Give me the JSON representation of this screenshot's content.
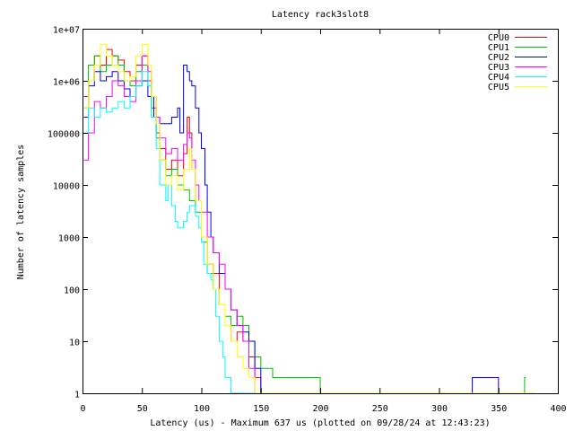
{
  "chart_data": {
    "type": "line",
    "title": "Latency rack3slot8",
    "xlabel": "Latency (us) - Maximum 637 us (plotted on 09/28/24 at 12:43:23)",
    "ylabel": "Number of latency samples",
    "xlim": [
      0,
      400
    ],
    "ylim": [
      1,
      10000000
    ],
    "yscale": "log",
    "x_ticks": [
      0,
      50,
      100,
      150,
      200,
      250,
      300,
      350,
      400
    ],
    "x_tick_labels": [
      "0",
      "50",
      "100",
      "150",
      "200",
      "250",
      "300",
      "350",
      "400"
    ],
    "y_ticks": [
      1,
      10,
      100,
      1000,
      10000,
      100000,
      1000000,
      10000000
    ],
    "y_tick_labels": [
      "1",
      "10",
      "100",
      "1000",
      "10000",
      "100000",
      "1e+06",
      "1e+07"
    ],
    "grid": false,
    "legend_position": "top-right",
    "series": [
      {
        "name": "CPU0",
        "color": "#ff0000",
        "points": [
          [
            1,
            500000
          ],
          [
            5,
            1000000
          ],
          [
            10,
            3000000
          ],
          [
            15,
            2000000
          ],
          [
            20,
            4000000
          ],
          [
            25,
            3000000
          ],
          [
            30,
            2500000
          ],
          [
            35,
            1500000
          ],
          [
            40,
            1000000
          ],
          [
            45,
            2000000
          ],
          [
            50,
            3000000
          ],
          [
            55,
            1000000
          ],
          [
            58,
            300000
          ],
          [
            62,
            100000
          ],
          [
            65,
            50000
          ],
          [
            70,
            20000
          ],
          [
            75,
            30000
          ],
          [
            80,
            15000
          ],
          [
            85,
            40000
          ],
          [
            88,
            200000
          ],
          [
            90,
            100000
          ],
          [
            92,
            20000
          ],
          [
            95,
            5000
          ],
          [
            100,
            1000
          ],
          [
            105,
            300
          ],
          [
            110,
            200
          ],
          [
            115,
            50
          ],
          [
            120,
            20
          ],
          [
            125,
            10
          ],
          [
            130,
            15
          ],
          [
            135,
            10
          ],
          [
            140,
            5
          ],
          [
            145,
            2
          ],
          [
            150,
            1
          ],
          [
            180,
            1
          ],
          [
            250,
            1
          ],
          [
            300,
            1
          ]
        ]
      },
      {
        "name": "CPU1",
        "color": "#00c000",
        "points": [
          [
            1,
            300000
          ],
          [
            5,
            2000000
          ],
          [
            10,
            3000000
          ],
          [
            15,
            1500000
          ],
          [
            20,
            2000000
          ],
          [
            25,
            3000000
          ],
          [
            30,
            2000000
          ],
          [
            35,
            1000000
          ],
          [
            40,
            800000
          ],
          [
            45,
            1500000
          ],
          [
            50,
            2000000
          ],
          [
            55,
            800000
          ],
          [
            58,
            200000
          ],
          [
            62,
            80000
          ],
          [
            65,
            30000
          ],
          [
            70,
            15000
          ],
          [
            75,
            20000
          ],
          [
            80,
            10000
          ],
          [
            85,
            8000
          ],
          [
            90,
            5000
          ],
          [
            95,
            3000
          ],
          [
            100,
            800
          ],
          [
            105,
            200
          ],
          [
            110,
            100
          ],
          [
            115,
            50
          ],
          [
            120,
            30
          ],
          [
            125,
            20
          ],
          [
            130,
            30
          ],
          [
            135,
            20
          ],
          [
            140,
            10
          ],
          [
            145,
            5
          ],
          [
            150,
            3
          ],
          [
            160,
            2
          ],
          [
            200,
            1
          ],
          [
            300,
            1
          ],
          [
            372,
            2
          ]
        ]
      },
      {
        "name": "CPU2",
        "color": "#0000ff",
        "points": [
          [
            1,
            200000
          ],
          [
            5,
            800000
          ],
          [
            10,
            1500000
          ],
          [
            15,
            1000000
          ],
          [
            20,
            1200000
          ],
          [
            25,
            1500000
          ],
          [
            30,
            1000000
          ],
          [
            35,
            700000
          ],
          [
            40,
            500000
          ],
          [
            45,
            800000
          ],
          [
            50,
            1000000
          ],
          [
            55,
            500000
          ],
          [
            60,
            200000
          ],
          [
            65,
            150000
          ],
          [
            70,
            150000
          ],
          [
            75,
            200000
          ],
          [
            80,
            300000
          ],
          [
            82,
            100000
          ],
          [
            85,
            2000000
          ],
          [
            88,
            1500000
          ],
          [
            90,
            1000000
          ],
          [
            92,
            800000
          ],
          [
            95,
            300000
          ],
          [
            98,
            100000
          ],
          [
            100,
            50000
          ],
          [
            103,
            10000
          ],
          [
            105,
            3000
          ],
          [
            108,
            1000
          ],
          [
            110,
            500
          ],
          [
            115,
            200
          ],
          [
            120,
            100
          ],
          [
            125,
            40
          ],
          [
            130,
            20
          ],
          [
            135,
            15
          ],
          [
            140,
            10
          ],
          [
            145,
            3
          ],
          [
            150,
            1
          ],
          [
            328,
            2
          ],
          [
            350,
            1
          ]
        ]
      },
      {
        "name": "CPU3",
        "color": "#ff00ff",
        "points": [
          [
            1,
            30000
          ],
          [
            5,
            100000
          ],
          [
            10,
            400000
          ],
          [
            15,
            300000
          ],
          [
            20,
            500000
          ],
          [
            25,
            1000000
          ],
          [
            30,
            800000
          ],
          [
            35,
            500000
          ],
          [
            40,
            400000
          ],
          [
            45,
            1000000
          ],
          [
            50,
            3000000
          ],
          [
            55,
            1500000
          ],
          [
            58,
            500000
          ],
          [
            62,
            200000
          ],
          [
            65,
            80000
          ],
          [
            70,
            40000
          ],
          [
            75,
            50000
          ],
          [
            80,
            30000
          ],
          [
            85,
            60000
          ],
          [
            88,
            100000
          ],
          [
            90,
            80000
          ],
          [
            92,
            30000
          ],
          [
            95,
            10000
          ],
          [
            98,
            5000
          ],
          [
            100,
            3000
          ],
          [
            105,
            1000
          ],
          [
            110,
            500
          ],
          [
            115,
            300
          ],
          [
            120,
            100
          ],
          [
            125,
            40
          ],
          [
            130,
            20
          ],
          [
            135,
            10
          ],
          [
            140,
            3
          ],
          [
            145,
            1
          ],
          [
            200,
            1
          ]
        ]
      },
      {
        "name": "CPU4",
        "color": "#00ffff",
        "points": [
          [
            1,
            100000
          ],
          [
            5,
            300000
          ],
          [
            10,
            200000
          ],
          [
            15,
            300000
          ],
          [
            20,
            250000
          ],
          [
            25,
            300000
          ],
          [
            30,
            400000
          ],
          [
            35,
            300000
          ],
          [
            40,
            500000
          ],
          [
            45,
            800000
          ],
          [
            50,
            1500000
          ],
          [
            55,
            800000
          ],
          [
            58,
            200000
          ],
          [
            62,
            50000
          ],
          [
            65,
            10000
          ],
          [
            70,
            5000
          ],
          [
            72,
            10000
          ],
          [
            75,
            4000
          ],
          [
            78,
            2000
          ],
          [
            80,
            1500
          ],
          [
            85,
            2000
          ],
          [
            88,
            3000
          ],
          [
            90,
            4000
          ],
          [
            95,
            2500
          ],
          [
            98,
            1500
          ],
          [
            100,
            800
          ],
          [
            102,
            300
          ],
          [
            105,
            200
          ],
          [
            108,
            150
          ],
          [
            110,
            100
          ],
          [
            112,
            30
          ],
          [
            115,
            10
          ],
          [
            118,
            5
          ],
          [
            120,
            2
          ],
          [
            125,
            1
          ],
          [
            140,
            1
          ],
          [
            180,
            1
          ],
          [
            250,
            1
          ],
          [
            350,
            1
          ]
        ]
      },
      {
        "name": "CPU5",
        "color": "#ffff00",
        "points": [
          [
            1,
            300000
          ],
          [
            5,
            1000000
          ],
          [
            10,
            2000000
          ],
          [
            15,
            5000000
          ],
          [
            20,
            3000000
          ],
          [
            25,
            2000000
          ],
          [
            30,
            1500000
          ],
          [
            35,
            1000000
          ],
          [
            40,
            1200000
          ],
          [
            45,
            3000000
          ],
          [
            50,
            5000000
          ],
          [
            55,
            2000000
          ],
          [
            58,
            500000
          ],
          [
            62,
            150000
          ],
          [
            65,
            30000
          ],
          [
            70,
            10000
          ],
          [
            75,
            15000
          ],
          [
            80,
            8000
          ],
          [
            85,
            20000
          ],
          [
            90,
            50000
          ],
          [
            92,
            20000
          ],
          [
            95,
            5000
          ],
          [
            100,
            1000
          ],
          [
            105,
            300
          ],
          [
            110,
            100
          ],
          [
            115,
            50
          ],
          [
            120,
            20
          ],
          [
            125,
            10
          ],
          [
            130,
            5
          ],
          [
            135,
            3
          ],
          [
            140,
            2
          ],
          [
            145,
            1
          ],
          [
            160,
            1
          ],
          [
            250,
            1
          ],
          [
            380,
            1
          ]
        ]
      }
    ]
  }
}
